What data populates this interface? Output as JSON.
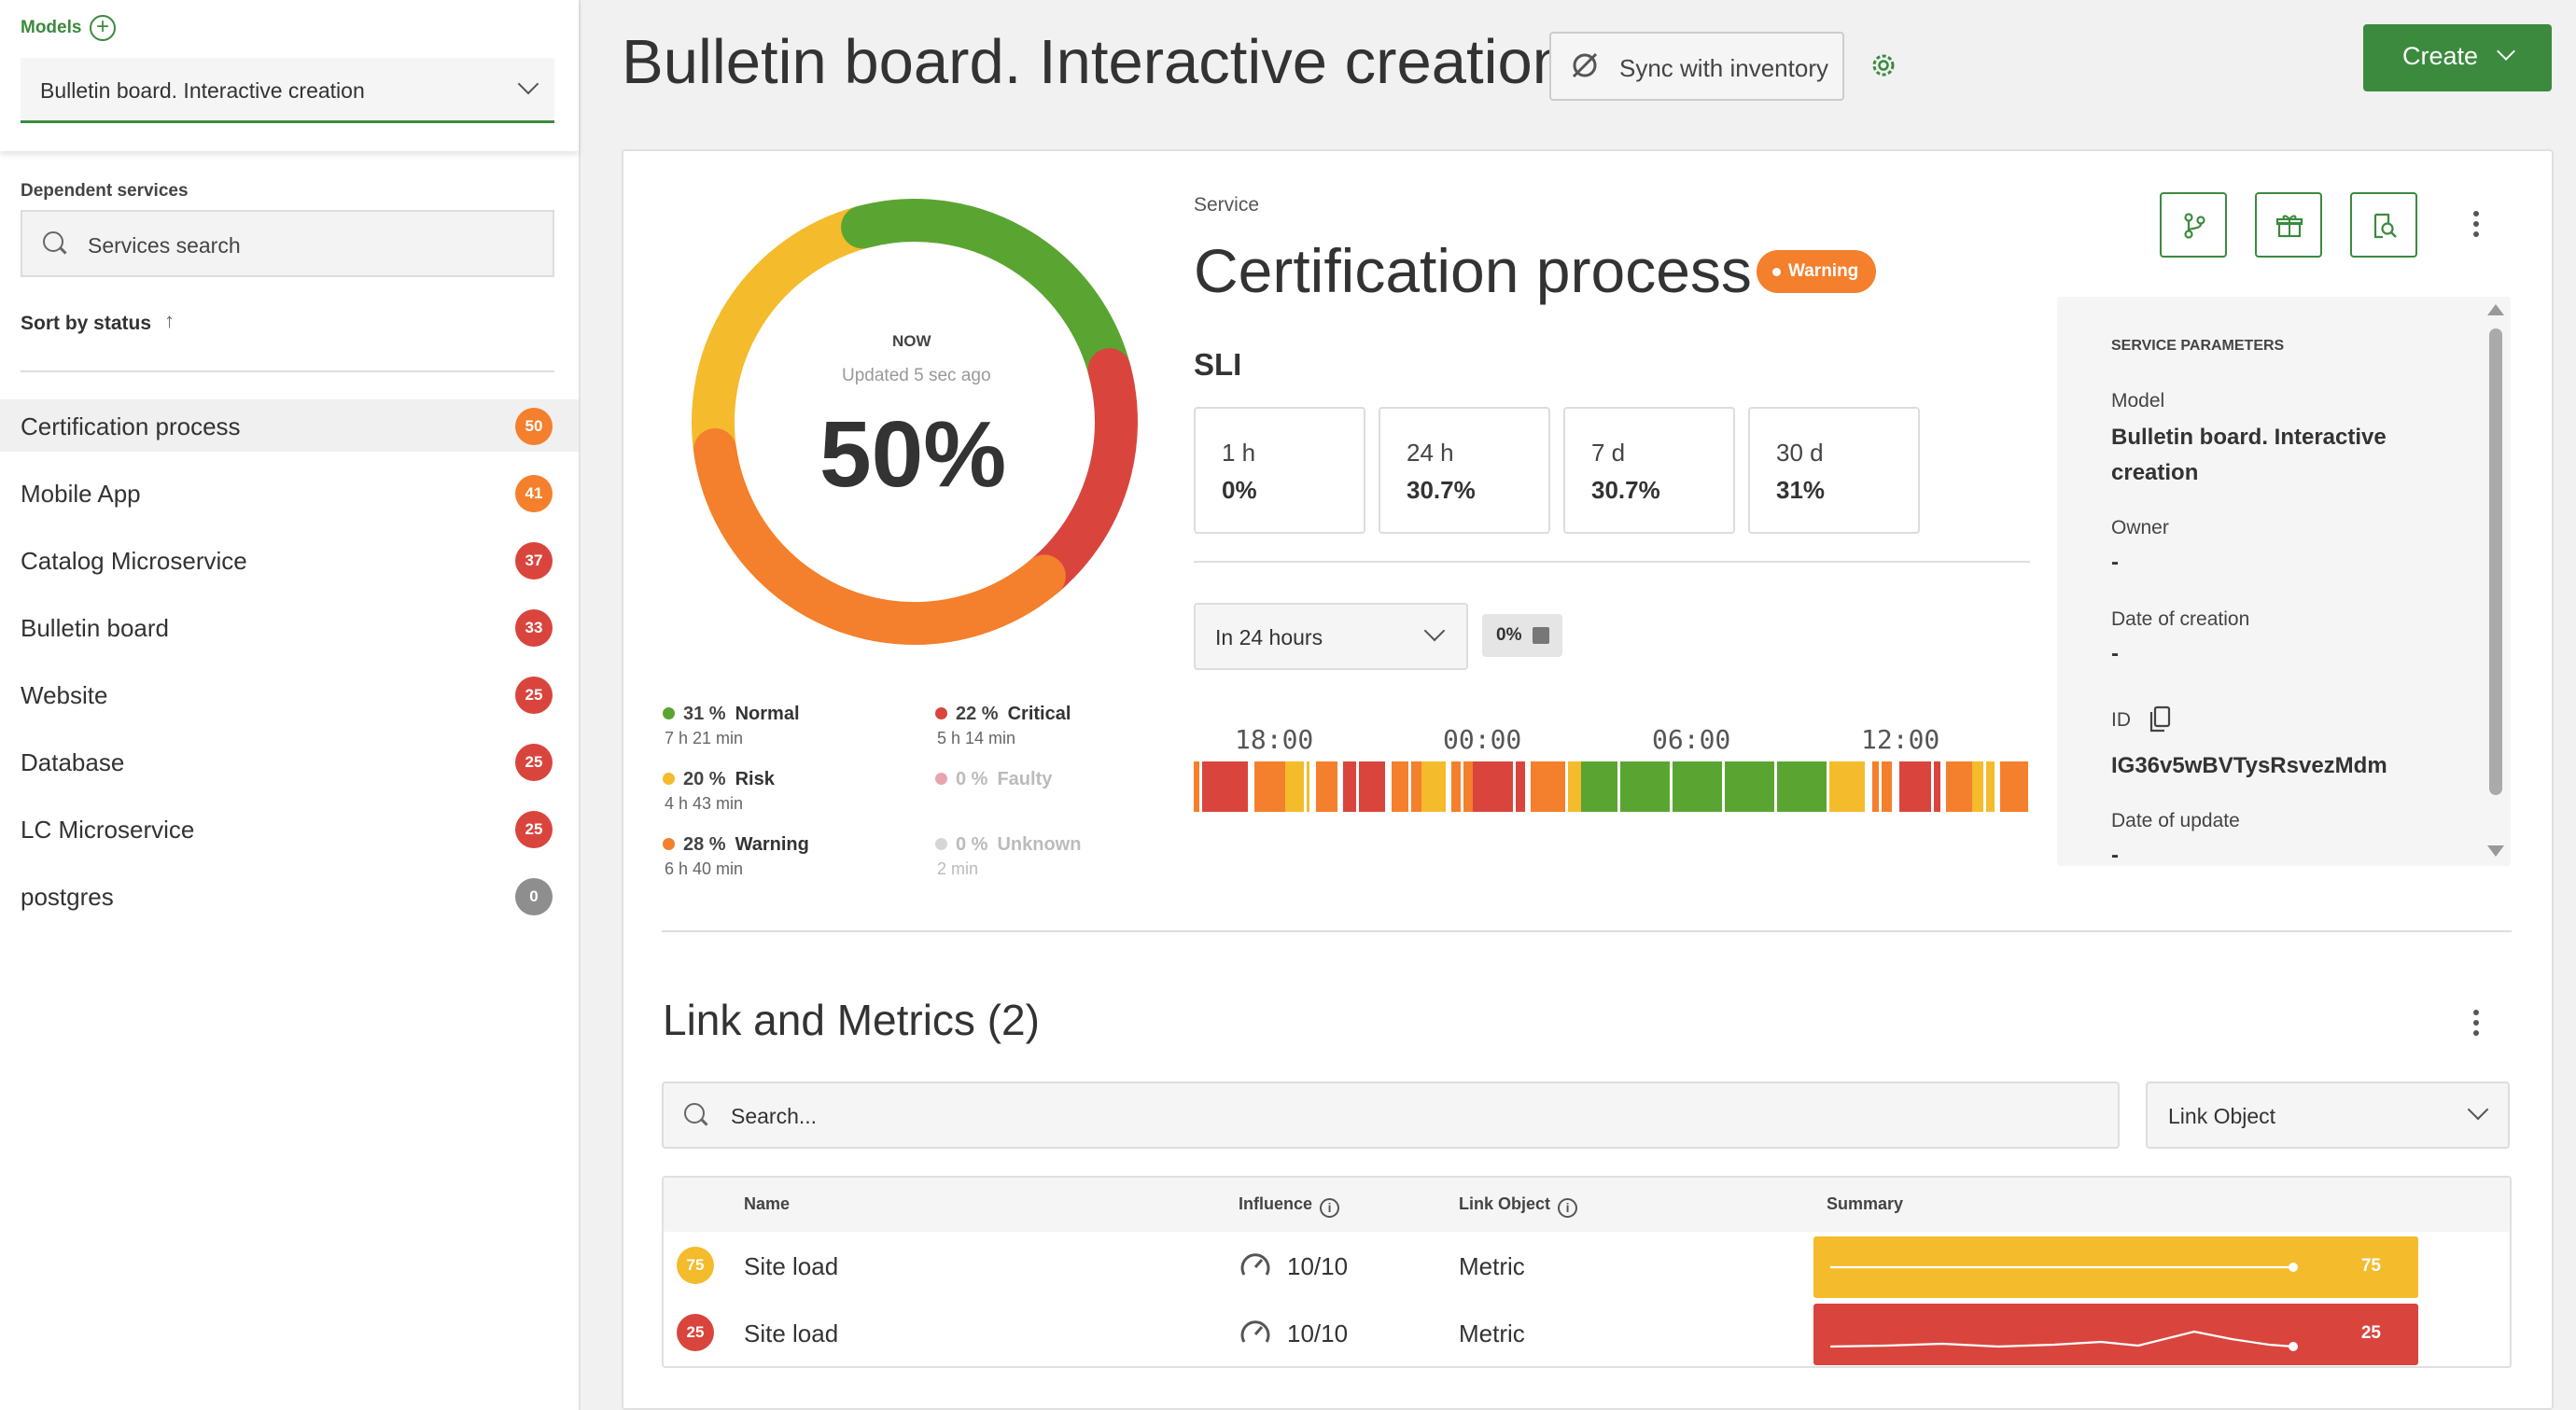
{
  "sidebar": {
    "models_label": "Models",
    "selected_model": "Bulletin board. Interactive creation",
    "dependent_label": "Dependent services",
    "search_placeholder": "Services search",
    "sort_label": "Sort by status",
    "services": [
      {
        "name": "Certification process",
        "score": "50",
        "color": "#f47f2c"
      },
      {
        "name": "Mobile App",
        "score": "41",
        "color": "#f47f2c"
      },
      {
        "name": "Catalog Microservice",
        "score": "37",
        "color": "#d9453d"
      },
      {
        "name": "Bulletin board",
        "score": "33",
        "color": "#d9453d"
      },
      {
        "name": "Website",
        "score": "25",
        "color": "#d9453d"
      },
      {
        "name": "Database",
        "score": "25",
        "color": "#d9453d"
      },
      {
        "name": "LC Microservice",
        "score": "25",
        "color": "#d9453d"
      },
      {
        "name": "postgres",
        "score": "0",
        "color": "#8e8e8e"
      }
    ]
  },
  "header": {
    "title": "Bulletin board. Interactive creation",
    "sync_label": "Sync with inventory",
    "create_label": "Create"
  },
  "donut": {
    "now_label": "NOW",
    "updated_label": "Updated 5 sec ago",
    "value": "50%",
    "legend": [
      {
        "pct": "31 %",
        "name": "Normal",
        "duration": "7 h 21 min",
        "color": "#5aa532"
      },
      {
        "pct": "22 %",
        "name": "Critical",
        "duration": "5 h 14 min",
        "color": "#d9453d"
      },
      {
        "pct": "20 %",
        "name": "Risk",
        "duration": "4 h 43 min",
        "color": "#f4bb2c"
      },
      {
        "pct": "0 %",
        "name": "Faulty",
        "duration": "",
        "color": "#e8a5b0"
      },
      {
        "pct": "28 %",
        "name": "Warning",
        "duration": "6 h 40 min",
        "color": "#f47f2c"
      },
      {
        "pct": "0 %",
        "name": "Unknown",
        "duration": "2 min",
        "color": "#d6d6d6"
      }
    ]
  },
  "service": {
    "label": "Service",
    "title": "Certification process",
    "status": "Warning",
    "sli_label": "SLI",
    "sli": [
      {
        "period": "1 h",
        "value": "0%"
      },
      {
        "period": "24 h",
        "value": "30.7%"
      },
      {
        "period": "7 d",
        "value": "30.7%"
      },
      {
        "period": "30 d",
        "value": "31%"
      }
    ],
    "period_select": "In 24 hours",
    "zero_chip": "0%",
    "timeline_times": [
      "18:00",
      "00:00",
      "06:00",
      "12:00"
    ]
  },
  "params": {
    "header": "SERVICE PARAMETERS",
    "model_label": "Model",
    "model_value": "Bulletin board. Interactive creation",
    "owner_label": "Owner",
    "owner_value": "-",
    "date_creation_label": "Date of creation",
    "date_creation_value": "-",
    "id_label": "ID",
    "id_value": "IG36v5wBVTysRsvezMdm",
    "date_update_label": "Date of update",
    "date_update_value": "-"
  },
  "links": {
    "title": "Link and Metrics (2)",
    "search_placeholder": "Search...",
    "filter_select": "Link Object",
    "columns": {
      "name": "Name",
      "influence": "Influence",
      "link_object": "Link Object",
      "summary": "Summary"
    },
    "rows": [
      {
        "score": "75",
        "name": "Site load",
        "influence": "10/10",
        "link_object": "Metric",
        "color": "#f4bb2c"
      },
      {
        "score": "25",
        "name": "Site load",
        "influence": "10/10",
        "link_object": "Metric",
        "color": "#d9453d"
      }
    ]
  }
}
